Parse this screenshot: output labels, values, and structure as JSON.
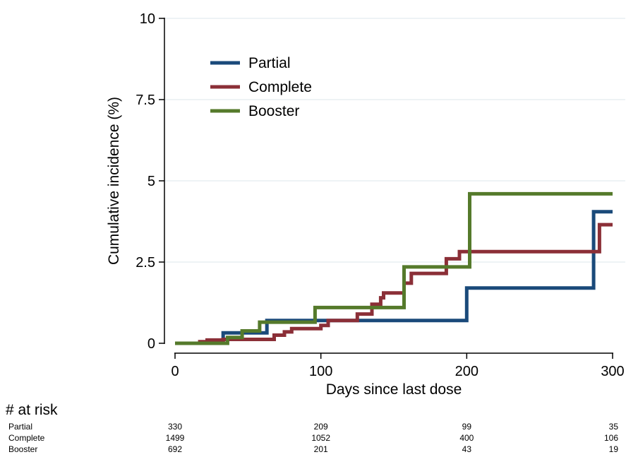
{
  "chart_data": {
    "type": "line",
    "step": true,
    "xlabel": "Days since last dose",
    "ylabel": "Cumulative incidence (%)",
    "xlim": [
      0,
      300
    ],
    "ylim": [
      0,
      10
    ],
    "xticks": [
      0,
      100,
      200,
      300
    ],
    "xtick_labels": [
      "0",
      "100",
      "200",
      "300"
    ],
    "yticks": [
      0,
      2.5,
      5,
      7.5,
      10
    ],
    "ytick_labels": [
      "0",
      "2.5",
      "5",
      "7.5",
      "10"
    ],
    "grid": "horizontal",
    "legend_position": "top-left",
    "series": [
      {
        "name": "Partial",
        "color": "#1a4a7a",
        "points": [
          [
            0,
            0
          ],
          [
            33,
            0
          ],
          [
            33,
            0.32
          ],
          [
            63,
            0.32
          ],
          [
            63,
            0.7
          ],
          [
            200,
            0.7
          ],
          [
            200,
            1.7
          ],
          [
            287,
            1.7
          ],
          [
            287,
            4.05
          ],
          [
            300,
            4.05
          ]
        ]
      },
      {
        "name": "Complete",
        "color": "#8b2f37",
        "points": [
          [
            0,
            0
          ],
          [
            17,
            0
          ],
          [
            17,
            0.05
          ],
          [
            22,
            0.05
          ],
          [
            22,
            0.1
          ],
          [
            33,
            0.1
          ],
          [
            33,
            0.12
          ],
          [
            68,
            0.12
          ],
          [
            68,
            0.25
          ],
          [
            75,
            0.25
          ],
          [
            75,
            0.35
          ],
          [
            80,
            0.35
          ],
          [
            80,
            0.45
          ],
          [
            100,
            0.45
          ],
          [
            100,
            0.55
          ],
          [
            105,
            0.55
          ],
          [
            105,
            0.7
          ],
          [
            125,
            0.7
          ],
          [
            125,
            0.9
          ],
          [
            135,
            0.9
          ],
          [
            135,
            1.2
          ],
          [
            141,
            1.2
          ],
          [
            141,
            1.4
          ],
          [
            143,
            1.4
          ],
          [
            143,
            1.55
          ],
          [
            157,
            1.55
          ],
          [
            157,
            1.85
          ],
          [
            162,
            1.85
          ],
          [
            162,
            2.15
          ],
          [
            186,
            2.15
          ],
          [
            186,
            2.6
          ],
          [
            195,
            2.6
          ],
          [
            195,
            2.82
          ],
          [
            291,
            2.82
          ],
          [
            291,
            3.65
          ],
          [
            300,
            3.65
          ]
        ]
      },
      {
        "name": "Booster",
        "color": "#557a2b",
        "points": [
          [
            0,
            0
          ],
          [
            36,
            0
          ],
          [
            36,
            0.18
          ],
          [
            46,
            0.18
          ],
          [
            46,
            0.38
          ],
          [
            58,
            0.38
          ],
          [
            58,
            0.65
          ],
          [
            96,
            0.65
          ],
          [
            96,
            1.1
          ],
          [
            157,
            1.1
          ],
          [
            157,
            2.35
          ],
          [
            202,
            2.35
          ],
          [
            202,
            4.6
          ],
          [
            300,
            4.6
          ]
        ]
      }
    ],
    "risk_table": {
      "title": "# at risk",
      "times": [
        0,
        100,
        200,
        300
      ],
      "rows": [
        {
          "name": "Partial",
          "values": [
            "330",
            "209",
            "99",
            "35"
          ]
        },
        {
          "name": "Complete",
          "values": [
            "1499",
            "1052",
            "400",
            "106"
          ]
        },
        {
          "name": "Booster",
          "values": [
            "692",
            "201",
            "43",
            "19"
          ]
        }
      ]
    }
  }
}
